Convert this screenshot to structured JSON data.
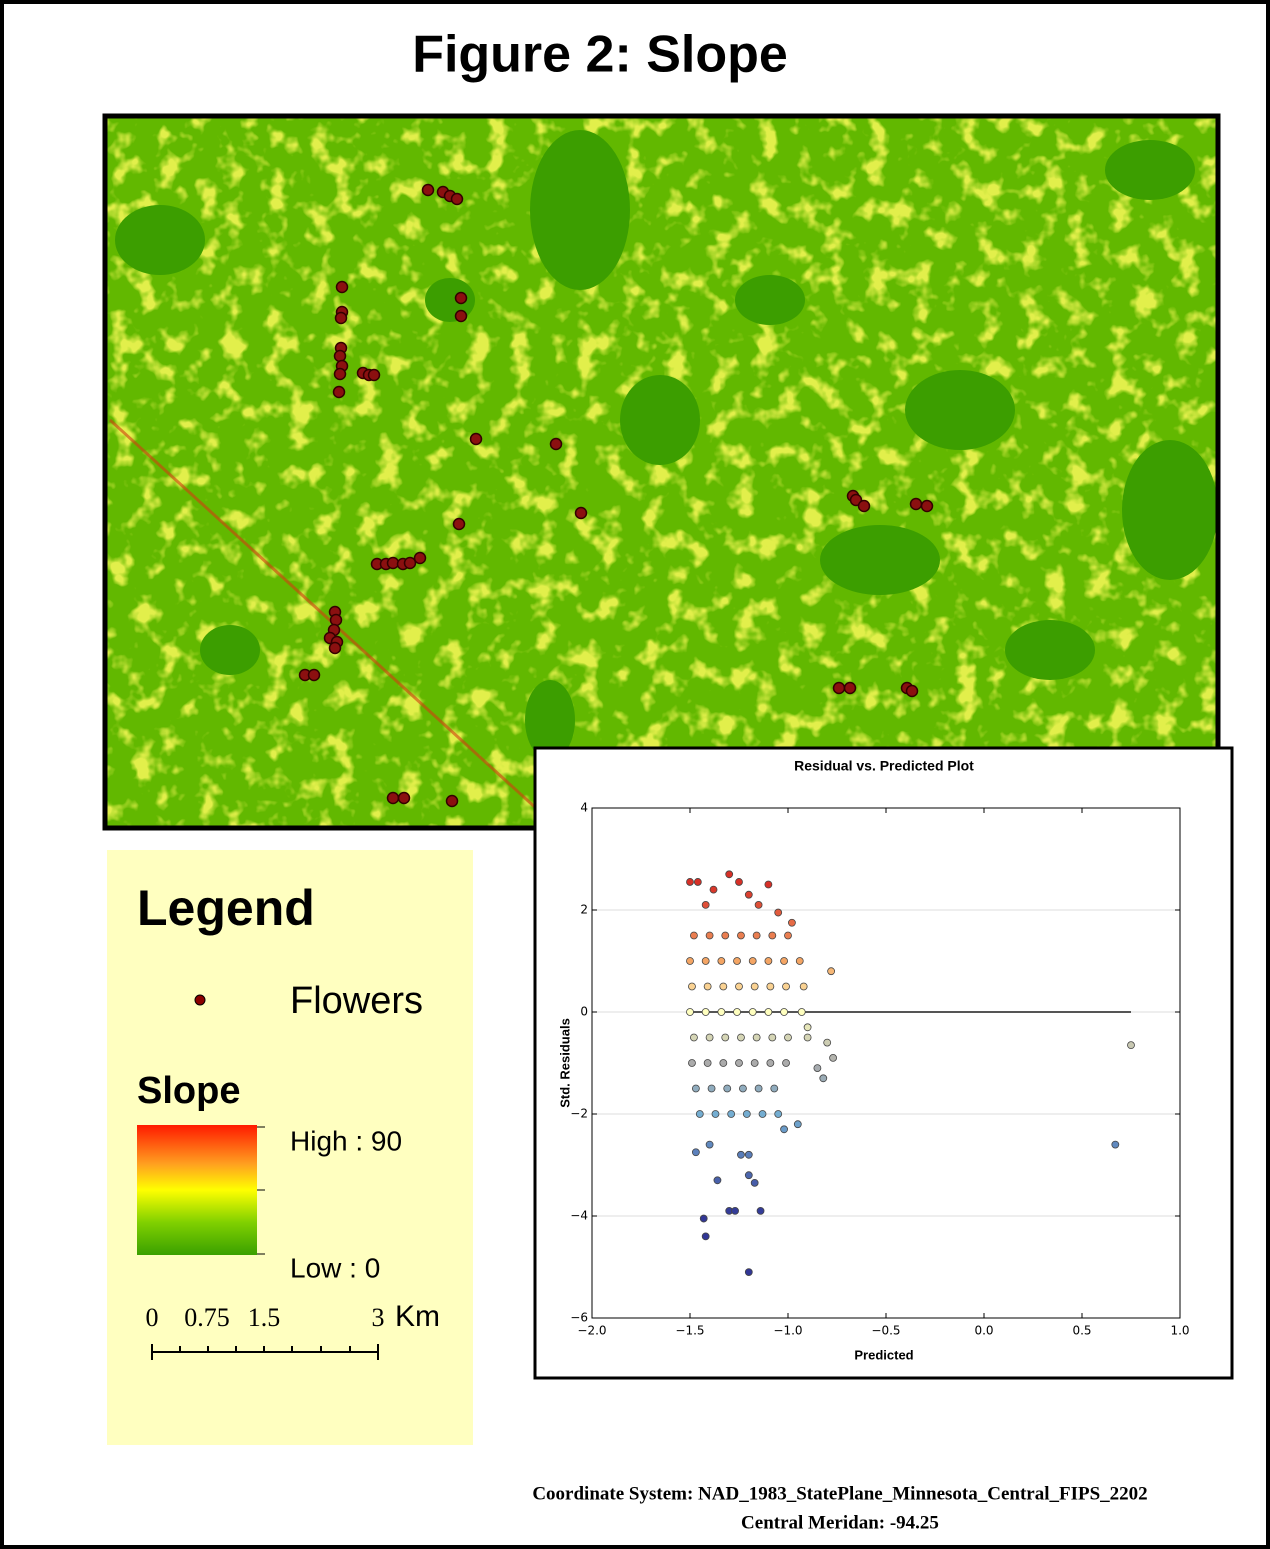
{
  "title": "Figure 2: Slope",
  "legend": {
    "title": "Legend",
    "flowers": "Flowers",
    "slope_title": "Slope",
    "high": "High : 90",
    "low": "Low : 0",
    "scale_labels": [
      "0",
      "0.75",
      "1.5",
      "3"
    ],
    "scale_unit": "Km"
  },
  "footer": [
    "Coordinate System: NAD_1983_StatePlane_Minnesota_Central_FIPS_2202",
    "Central Meridan: -94.25"
  ],
  "chart_data": {
    "type": "scatter",
    "title": "Residual vs. Predicted Plot",
    "x_label": "Predicted",
    "y_label": "Std. Residuals",
    "xlim": [
      -2,
      1
    ],
    "ylim": [
      -6,
      4
    ],
    "xticks": [
      {
        "value": -2,
        "label": "−2.0"
      },
      {
        "value": -1.5,
        "label": "−1.5"
      },
      {
        "value": -1,
        "label": "−1.0"
      },
      {
        "value": -0.5,
        "label": "−0.5"
      },
      {
        "value": 0,
        "label": "0.0"
      },
      {
        "value": 0.5,
        "label": "0.5"
      },
      {
        "value": 1,
        "label": "1.0"
      }
    ],
    "yticks": [
      {
        "value": -6,
        "label": "−6"
      },
      {
        "value": -4,
        "label": "−4"
      },
      {
        "value": -2,
        "label": "−2"
      },
      0,
      2,
      4
    ],
    "grid": true,
    "zero_line": {
      "y": 0,
      "x": [
        -1.5,
        0.75
      ]
    },
    "x": [
      0.67,
      0.75,
      -1.2,
      -1.42,
      -1.43,
      -1.3,
      -1.27,
      -1.14,
      -1.36,
      -1.2,
      -1.17,
      -1.47,
      -1.4,
      -1.24,
      -1.2,
      -1.5,
      -1.46,
      -1.3,
      -1.25,
      -1.1,
      -1.38,
      -1.2,
      -1.15,
      -1.42,
      -1.05,
      -0.98,
      -0.78,
      -0.8,
      -0.77,
      -0.82,
      -0.9,
      -0.85,
      -0.95,
      -1.02,
      -1.48,
      -1.4,
      -1.32,
      -1.24,
      -1.16,
      -1.08,
      -1.0,
      -1.5,
      -1.42,
      -1.34,
      -1.26,
      -1.18,
      -1.1,
      -1.02,
      -0.94,
      -1.49,
      -1.41,
      -1.33,
      -1.25,
      -1.17,
      -1.09,
      -1.01,
      -0.92,
      -1.5,
      -1.42,
      -1.34,
      -1.26,
      -1.18,
      -1.1,
      -1.02,
      -0.93,
      -1.48,
      -1.4,
      -1.32,
      -1.24,
      -1.16,
      -1.08,
      -1.0,
      -0.9,
      -1.49,
      -1.41,
      -1.33,
      -1.25,
      -1.17,
      -1.09,
      -1.01,
      -1.47,
      -1.39,
      -1.31,
      -1.23,
      -1.15,
      -1.07,
      -1.45,
      -1.37,
      -1.29,
      -1.21,
      -1.13,
      -1.05
    ],
    "y": [
      -2.6,
      -0.65,
      -5.1,
      -4.4,
      -4.05,
      -3.9,
      -3.9,
      -3.9,
      -3.3,
      -3.2,
      -3.35,
      -2.75,
      -2.6,
      -2.8,
      -2.8,
      2.55,
      2.55,
      2.7,
      2.55,
      2.5,
      2.4,
      2.3,
      2.1,
      2.1,
      1.95,
      1.75,
      0.8,
      -0.6,
      -0.9,
      -1.3,
      -0.3,
      -1.1,
      -2.2,
      -2.3,
      1.5,
      1.5,
      1.5,
      1.5,
      1.5,
      1.5,
      1.5,
      1.0,
      1.0,
      1.0,
      1.0,
      1.0,
      1.0,
      1.0,
      1.0,
      0.5,
      0.5,
      0.5,
      0.5,
      0.5,
      0.5,
      0.5,
      0.5,
      0.0,
      0.0,
      0.0,
      0.0,
      0.0,
      0.0,
      0.0,
      0.0,
      -0.5,
      -0.5,
      -0.5,
      -0.5,
      -0.5,
      -0.5,
      -0.5,
      -0.5,
      -1.0,
      -1.0,
      -1.0,
      -1.0,
      -1.0,
      -1.0,
      -1.0,
      -1.5,
      -1.5,
      -1.5,
      -1.5,
      -1.5,
      -1.5,
      -2.0,
      -2.0,
      -2.0,
      -2.0,
      -2.0,
      -2.0
    ]
  }
}
